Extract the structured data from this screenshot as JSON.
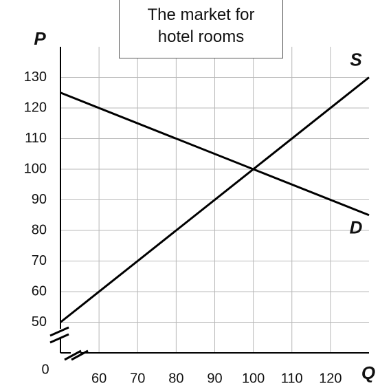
{
  "chart_data": {
    "type": "line",
    "title": "The market for hotel rooms",
    "x_label": "Q",
    "y_label": "P",
    "origin_label": "0",
    "xlim": [
      50,
      130
    ],
    "ylim": [
      40,
      140
    ],
    "xticks": [
      60,
      70,
      80,
      90,
      100,
      110,
      120
    ],
    "yticks": [
      50,
      60,
      70,
      80,
      90,
      100,
      110,
      120,
      130
    ],
    "grid": true,
    "series": [
      {
        "name": "S",
        "color": "#000000",
        "x": [
          50,
          130
        ],
        "values": [
          50,
          130
        ]
      },
      {
        "name": "D",
        "color": "#000000",
        "x": [
          50,
          130
        ],
        "values": [
          125,
          85
        ]
      }
    ]
  }
}
